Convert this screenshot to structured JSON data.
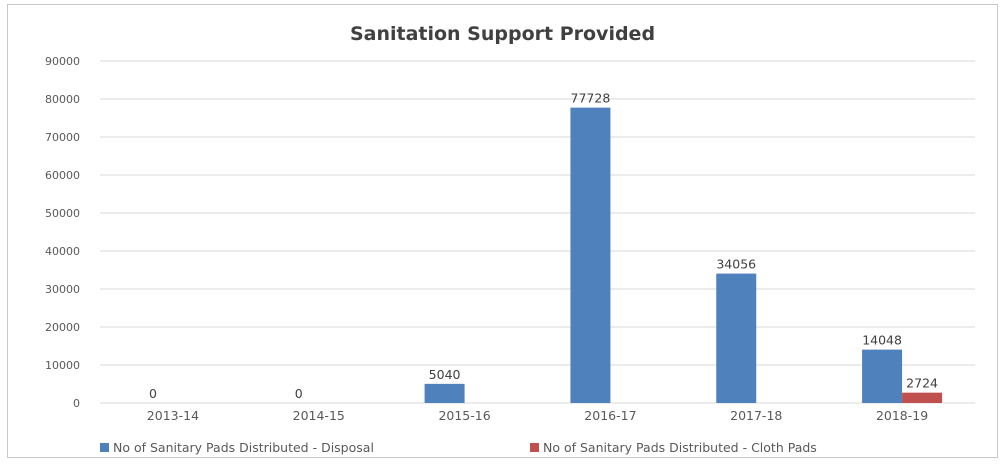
{
  "chart_data": {
    "type": "bar",
    "title": "Sanitation Support Provided",
    "categories": [
      "2013-14",
      "2014-15",
      "2015-16",
      "2016-17",
      "2017-18",
      "2018-19"
    ],
    "series": [
      {
        "name": "No of Sanitary Pads Distributed - Disposal",
        "color": "#4f81bd",
        "values": [
          0,
          0,
          5040,
          77728,
          34056,
          14048
        ],
        "labels": [
          "0",
          "0",
          "5040",
          "77728",
          "34056",
          "14048"
        ]
      },
      {
        "name": "No of Sanitary Pads Distributed - Cloth Pads",
        "color": "#c0504d",
        "values": [
          null,
          null,
          null,
          null,
          null,
          2724
        ],
        "labels": [
          "",
          "",
          "",
          "",
          "",
          "2724"
        ]
      }
    ],
    "ylim": [
      0,
      90000
    ],
    "yticks": [
      "0",
      "10000",
      "20000",
      "30000",
      "40000",
      "50000",
      "60000",
      "70000",
      "80000",
      "90000"
    ],
    "grid": true,
    "legend_position": "bottom"
  }
}
